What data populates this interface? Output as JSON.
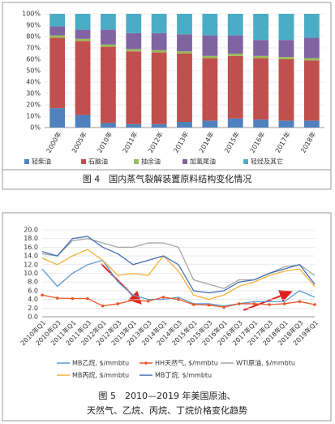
{
  "chart_data": [
    {
      "type": "stacked_bar",
      "title": "图 4　国内蒸气裂解装置原料结构变化情况",
      "categories": [
        "2000年",
        "2005年",
        "2010年",
        "2011年",
        "2012年",
        "2013年",
        "2014年",
        "2015年",
        "2016年",
        "2017年",
        "2018年"
      ],
      "series": [
        {
          "name": "轻柴油",
          "color": "#4f81bd",
          "values": [
            17,
            11,
            4,
            3,
            3,
            5,
            6,
            8,
            7,
            6,
            6
          ]
        },
        {
          "name": "石脑油",
          "color": "#c0504d",
          "values": [
            62,
            65,
            67,
            64,
            63,
            60,
            55,
            55,
            54,
            54,
            53
          ]
        },
        {
          "name": "抽余油",
          "color": "#9bbb59",
          "values": [
            2,
            2,
            2,
            2,
            2,
            2,
            2,
            2,
            2,
            2,
            2
          ]
        },
        {
          "name": "加氢尾油",
          "color": "#8064a2",
          "values": [
            8,
            8,
            13,
            14,
            15,
            15,
            18,
            16,
            14,
            15,
            18
          ]
        },
        {
          "name": "轻烃及其它",
          "color": "#4bacc6",
          "values": [
            11,
            14,
            14,
            17,
            17,
            18,
            19,
            19,
            23,
            23,
            21
          ]
        }
      ],
      "ylim": [
        0,
        100
      ],
      "yticks": [
        {
          "value": 0,
          "label": "0%"
        },
        {
          "value": 10,
          "label": "10%"
        },
        {
          "value": 20,
          "label": "20%"
        },
        {
          "value": 30,
          "label": "30%"
        },
        {
          "value": 40,
          "label": "40%"
        },
        {
          "value": 50,
          "label": "50%"
        },
        {
          "value": 60,
          "label": "60%"
        },
        {
          "value": 70,
          "label": "70%"
        },
        {
          "value": 80,
          "label": "80%"
        },
        {
          "value": 90,
          "label": "90%"
        },
        {
          "value": 100,
          "label": "100%"
        }
      ],
      "grid": true
    },
    {
      "type": "line",
      "title": [
        "图 5　2010—2019 年美国原油、",
        "天然气、乙烷、丙烷、丁烷价格变化趋势"
      ],
      "categories": [
        "2010年Q1",
        "2010年Q3",
        "2011年Q1",
        "2011年Q3",
        "2012年Q1",
        "2012年Q3",
        "2013年Q1",
        "2013年Q3",
        "2014年Q1",
        "2014年Q3",
        "2015年Q1",
        "2015年Q3",
        "2016年Q1",
        "2016年Q3",
        "2017年Q1",
        "2017年Q3",
        "2018年Q1",
        "2018年Q3",
        "2019年Q1"
      ],
      "series": [
        {
          "name": "MB乙烷, $/mmbtu",
          "color": "#5b9bd5",
          "values": [
            11,
            7,
            10,
            12,
            13,
            8,
            5,
            4,
            4,
            4.5,
            3,
            3,
            2.5,
            3,
            3.5,
            3.5,
            3.5,
            6,
            4.5
          ]
        },
        {
          "name": "HH天然气, $/mmbtu",
          "color": "#e8562a",
          "marker": true,
          "values": [
            5,
            4.3,
            4.2,
            4.2,
            2.5,
            3,
            3.8,
            3.6,
            4.5,
            4,
            2.8,
            2.7,
            2.2,
            3,
            3,
            2.8,
            3,
            3.5,
            2.8
          ]
        },
        {
          "name": "WTI原油, $/mmbtu",
          "color": "#a5a5a5",
          "values": [
            14.5,
            14,
            17.5,
            18,
            17,
            16,
            16,
            17,
            17,
            16,
            8.5,
            7.5,
            6.5,
            8.5,
            8.5,
            10,
            11.5,
            12,
            9.5
          ]
        },
        {
          "name": "MB丙烷, $/mmbtu",
          "color": "#f2b134",
          "values": [
            13.5,
            12,
            14,
            15.5,
            13,
            9.5,
            10,
            9.5,
            14,
            10.5,
            5,
            4,
            5,
            7,
            8,
            9.5,
            10.5,
            11,
            7
          ]
        },
        {
          "name": "MB丁烷, $/mmbtu",
          "color": "#3f6fb5",
          "values": [
            15,
            14,
            18,
            18.5,
            16,
            14.5,
            12,
            13,
            14,
            12,
            6,
            5.5,
            6,
            8,
            8.5,
            10,
            11,
            12,
            7.5
          ]
        }
      ],
      "ylim": [
        0,
        20
      ],
      "yticks": [
        {
          "value": 0,
          "label": "0.0"
        },
        {
          "value": 2,
          "label": "2.0"
        },
        {
          "value": 4,
          "label": "4.0"
        },
        {
          "value": 6,
          "label": "6.0"
        },
        {
          "value": 8,
          "label": "8.0"
        },
        {
          "value": 10,
          "label": "10.0"
        },
        {
          "value": 12,
          "label": "12.0"
        },
        {
          "value": 14,
          "label": "14.0"
        },
        {
          "value": 16,
          "label": "16.0"
        },
        {
          "value": 18,
          "label": "18.0"
        },
        {
          "value": 20,
          "label": "20.0"
        }
      ],
      "grid": true
    }
  ]
}
